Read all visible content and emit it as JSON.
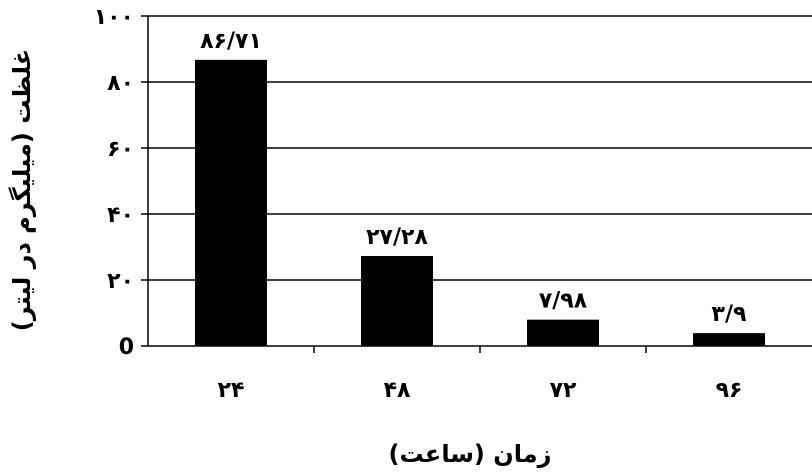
{
  "chart_data": {
    "type": "bar",
    "xlabel": "زمان  (ساعت)",
    "ylabel": "غلظت (میلیگرم در لیتر)",
    "ylim": [
      0,
      100
    ],
    "y_ticks": [
      {
        "value": 0,
        "label": "0"
      },
      {
        "value": 20,
        "label": "۲۰"
      },
      {
        "value": 40,
        "label": "۴۰"
      },
      {
        "value": 60,
        "label": "۶۰"
      },
      {
        "value": 80,
        "label": "۸۰"
      },
      {
        "value": 100,
        "label": "۱۰۰"
      }
    ],
    "categories": [
      "۲۴",
      "۴۸",
      "۷۲",
      "۹۶"
    ],
    "values": [
      86.71,
      27.28,
      7.98,
      3.9
    ],
    "data_labels": [
      "۸۶/۷۱",
      "۲۷/۲۸",
      "۷/۹۸",
      "۳/۹"
    ],
    "bar_color": "#000000",
    "grid": true
  }
}
